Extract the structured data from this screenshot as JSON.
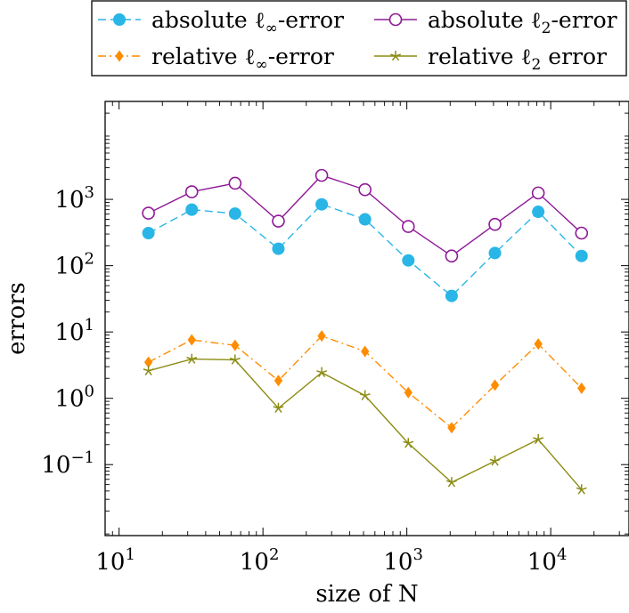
{
  "chart_data": {
    "type": "line",
    "xlabel": "size of N",
    "ylabel": "errors",
    "x_scale": "log",
    "y_scale": "log",
    "xlim": [
      8,
      35000
    ],
    "ylim": [
      0.0085,
      30000
    ],
    "x_ticks": [
      {
        "value": 10,
        "base": "10",
        "exp": "1"
      },
      {
        "value": 100,
        "base": "10",
        "exp": "2"
      },
      {
        "value": 1000,
        "base": "10",
        "exp": "3"
      },
      {
        "value": 10000,
        "base": "10",
        "exp": "4"
      }
    ],
    "y_ticks": [
      {
        "value": 0.1,
        "base": "10",
        "exp": "−1"
      },
      {
        "value": 1,
        "base": "10",
        "exp": "0"
      },
      {
        "value": 10,
        "base": "10",
        "exp": "1"
      },
      {
        "value": 100,
        "base": "10",
        "exp": "2"
      },
      {
        "value": 1000,
        "base": "10",
        "exp": "3"
      }
    ],
    "grid": false,
    "legend_position": "top",
    "x": [
      16,
      32,
      64,
      128,
      256,
      512,
      1024,
      2048,
      4096,
      8192,
      16384
    ],
    "series": [
      {
        "name": "absolute ℓ∞-error",
        "legend_base": "absolute ℓ",
        "legend_sub": "∞",
        "legend_tail": "-error",
        "color": "#29b6e6",
        "marker": "circle",
        "dash": "dashed",
        "values": [
          310,
          700,
          610,
          180,
          840,
          500,
          120,
          35,
          155,
          650,
          140
        ]
      },
      {
        "name": "absolute ℓ2-error",
        "legend_base": "absolute ℓ",
        "legend_sub": "2",
        "legend_tail": "-error",
        "color": "#8e1a96",
        "marker": "open-circle",
        "dash": "solid",
        "values": [
          620,
          1300,
          1750,
          470,
          2300,
          1400,
          390,
          140,
          420,
          1250,
          310
        ]
      },
      {
        "name": "relative ℓ∞-error",
        "legend_base": "relative ℓ",
        "legend_sub": "∞",
        "legend_tail": "-error",
        "color": "#ff8c00",
        "marker": "diamond",
        "dash": "dashdot",
        "values": [
          3.5,
          7.6,
          6.3,
          1.85,
          8.7,
          5.1,
          1.22,
          0.36,
          1.58,
          6.6,
          1.42
        ]
      },
      {
        "name": "relative ℓ2 error",
        "legend_base": "relative ℓ",
        "legend_sub": "2",
        "legend_tail": " error",
        "color": "#8c8c14",
        "marker": "star",
        "dash": "solid",
        "values": [
          2.6,
          3.9,
          3.8,
          0.71,
          2.45,
          1.1,
          0.21,
          0.054,
          0.113,
          0.24,
          0.042
        ]
      }
    ]
  }
}
